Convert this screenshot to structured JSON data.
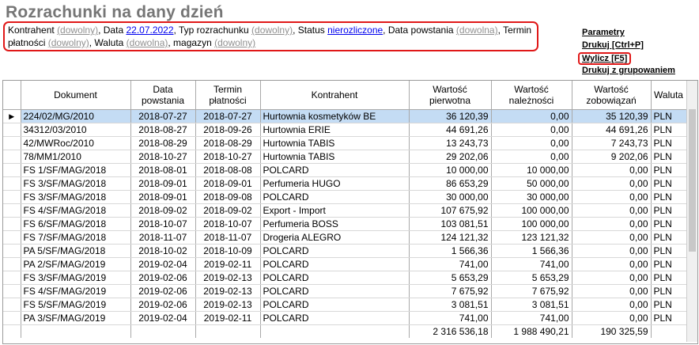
{
  "title": "Rozrachunki na dany dzień",
  "filters": {
    "kontrahent_label": "Kontrahent",
    "kontrahent_value": "(dowolny)",
    "data_label": "Data",
    "data_value": "22.07.2022",
    "typ_label": "Typ rozrachunku",
    "typ_value": "(dowolny)",
    "status_label": "Status",
    "status_value": "nierozliczone",
    "data_powstania_label": "Data powstania",
    "data_powstania_value": "(dowolna)",
    "termin_label": "Termin płatności",
    "termin_value": "(dowolny)",
    "waluta_label": "Waluta",
    "waluta_value": "(dowolna)",
    "magazyn_label": "magazyn",
    "magazyn_value": "(dowolny)"
  },
  "actions": {
    "parametry": "Parametry",
    "drukuj": "Drukuj [Ctrl+P]",
    "wylicz": "Wylicz [F5]",
    "drukuj_grup": "Drukuj z grupowaniem"
  },
  "columns": {
    "dokument": "Dokument",
    "data_powstania": "Data powstania",
    "termin": "Termin płatności",
    "kontrahent": "Kontrahent",
    "pierwotna": "Wartość pierwotna",
    "naleznosci": "Wartość należności",
    "zobowiazan": "Wartość zobowiązań",
    "waluta": "Waluta"
  },
  "row_indicator": "▶",
  "rows": [
    {
      "dokument": "224/02/MG/2010",
      "data": "2018-07-27",
      "termin": "2018-07-27",
      "kontrahent": "Hurtownia kosmetyków BE",
      "pierwotna": "36 120,39",
      "naleznosci": "0,00",
      "zobowiazan": "35 120,39",
      "waluta": "PLN"
    },
    {
      "dokument": "34312/03/2010",
      "data": "2018-08-27",
      "termin": "2018-09-26",
      "kontrahent": "Hurtownia ERIE",
      "pierwotna": "44 691,26",
      "naleznosci": "0,00",
      "zobowiazan": "44 691,26",
      "waluta": "PLN"
    },
    {
      "dokument": "42/MWRoc/2010",
      "data": "2018-08-29",
      "termin": "2018-08-29",
      "kontrahent": "Hurtownia TABIS",
      "pierwotna": "13 243,73",
      "naleznosci": "0,00",
      "zobowiazan": "7 243,73",
      "waluta": "PLN"
    },
    {
      "dokument": "78/MM1/2010",
      "data": "2018-10-27",
      "termin": "2018-10-27",
      "kontrahent": "Hurtownia TABIS",
      "pierwotna": "29 202,06",
      "naleznosci": "0,00",
      "zobowiazan": "9 202,06",
      "waluta": "PLN"
    },
    {
      "dokument": "FS 1/SF/MAG/2018",
      "data": "2018-08-01",
      "termin": "2018-08-08",
      "kontrahent": "POLCARD",
      "pierwotna": "10 000,00",
      "naleznosci": "10 000,00",
      "zobowiazan": "0,00",
      "waluta": "PLN"
    },
    {
      "dokument": "FS 3/SF/MAG/2018",
      "data": "2018-09-01",
      "termin": "2018-09-01",
      "kontrahent": "Perfumeria HUGO",
      "pierwotna": "86 653,29",
      "naleznosci": "50 000,00",
      "zobowiazan": "0,00",
      "waluta": "PLN"
    },
    {
      "dokument": "FS 3/SF/MAG/2018",
      "data": "2018-09-01",
      "termin": "2018-09-08",
      "kontrahent": "POLCARD",
      "pierwotna": "30 000,00",
      "naleznosci": "30 000,00",
      "zobowiazan": "0,00",
      "waluta": "PLN"
    },
    {
      "dokument": "FS 4/SF/MAG/2018",
      "data": "2018-09-02",
      "termin": "2018-09-02",
      "kontrahent": "Export - Import",
      "pierwotna": "107 675,92",
      "naleznosci": "100 000,00",
      "zobowiazan": "0,00",
      "waluta": "PLN"
    },
    {
      "dokument": "FS 6/SF/MAG/2018",
      "data": "2018-10-07",
      "termin": "2018-10-07",
      "kontrahent": "Perfumeria BOSS",
      "pierwotna": "103 081,51",
      "naleznosci": "100 000,00",
      "zobowiazan": "0,00",
      "waluta": "PLN"
    },
    {
      "dokument": "FS 7/SF/MAG/2018",
      "data": "2018-11-07",
      "termin": "2018-11-07",
      "kontrahent": "Drogeria ALEGRO",
      "pierwotna": "124 121,32",
      "naleznosci": "123 121,32",
      "zobowiazan": "0,00",
      "waluta": "PLN"
    },
    {
      "dokument": "PA 5/SF/MAG/2018",
      "data": "2018-10-02",
      "termin": "2018-10-09",
      "kontrahent": "POLCARD",
      "pierwotna": "1 566,36",
      "naleznosci": "1 566,36",
      "zobowiazan": "0,00",
      "waluta": "PLN"
    },
    {
      "dokument": "PA 2/SF/MAG/2019",
      "data": "2019-02-04",
      "termin": "2019-02-11",
      "kontrahent": "POLCARD",
      "pierwotna": "741,00",
      "naleznosci": "741,00",
      "zobowiazan": "0,00",
      "waluta": "PLN"
    },
    {
      "dokument": "FS 3/SF/MAG/2019",
      "data": "2019-02-06",
      "termin": "2019-02-13",
      "kontrahent": "POLCARD",
      "pierwotna": "5 653,29",
      "naleznosci": "5 653,29",
      "zobowiazan": "0,00",
      "waluta": "PLN"
    },
    {
      "dokument": "FS 4/SF/MAG/2019",
      "data": "2019-02-06",
      "termin": "2019-02-13",
      "kontrahent": "POLCARD",
      "pierwotna": "7 675,92",
      "naleznosci": "7 675,92",
      "zobowiazan": "0,00",
      "waluta": "PLN"
    },
    {
      "dokument": "FS 5/SF/MAG/2019",
      "data": "2019-02-06",
      "termin": "2019-02-13",
      "kontrahent": "POLCARD",
      "pierwotna": "3 081,51",
      "naleznosci": "3 081,51",
      "zobowiazan": "0,00",
      "waluta": "PLN"
    },
    {
      "dokument": "PA 3/SF/MAG/2019",
      "data": "2019-02-04",
      "termin": "2019-02-11",
      "kontrahent": "POLCARD",
      "pierwotna": "741,00",
      "naleznosci": "741,00",
      "zobowiazan": "0,00",
      "waluta": "PLN"
    }
  ],
  "totals": {
    "pierwotna": "2 316 536,18",
    "naleznosci": "1 988 490,21",
    "zobowiazan": "190 325,59"
  }
}
